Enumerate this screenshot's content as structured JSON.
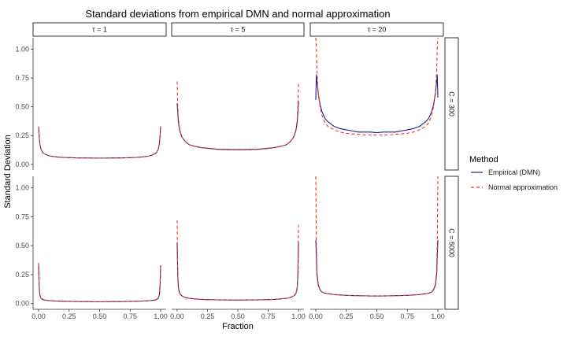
{
  "chart_data": {
    "type": "line",
    "title": "Standard deviations from empirical DMN and normal approximation",
    "xlabel": "Fraction",
    "ylabel": "Standard Deviation",
    "xlim": [
      0,
      1
    ],
    "ylim": [
      0,
      1.1
    ],
    "x_ticks": [
      "0.00",
      "0.25",
      "0.50",
      "0.75",
      "1.00"
    ],
    "y_ticks": [
      "0.00",
      "0.25",
      "0.50",
      "0.75",
      "1.00"
    ],
    "x_tick_values": [
      0,
      0.25,
      0.5,
      0.75,
      1
    ],
    "y_tick_values": [
      0,
      0.25,
      0.5,
      0.75,
      1
    ],
    "grid": false,
    "legend": {
      "title": "Method",
      "placement": "right",
      "entries": [
        {
          "label": "Empirical (DMN)",
          "color": "#1a237e",
          "dash": "solid"
        },
        {
          "label": "Normal approximation",
          "color": "#ff2a2a",
          "dash": "dashed"
        }
      ]
    },
    "facet_columns": [
      "τ = 1",
      "τ = 5",
      "τ = 20"
    ],
    "facet_rows": [
      "C = 300",
      "C = 5000"
    ],
    "x": [
      0.0,
      0.005,
      0.01,
      0.02,
      0.035,
      0.05,
      0.075,
      0.1,
      0.15,
      0.2,
      0.25,
      0.3,
      0.35,
      0.4,
      0.45,
      0.5,
      0.55,
      0.6,
      0.65,
      0.7,
      0.75,
      0.8,
      0.85,
      0.9,
      0.925,
      0.95,
      0.965,
      0.98,
      0.99,
      0.995,
      1.0
    ],
    "panels": [
      {
        "col": "τ = 1",
        "row": "C = 300",
        "series": [
          {
            "name": "Empirical (DMN)",
            "values": [
              0.33,
              0.25,
              0.18,
              0.13,
              0.1,
              0.09,
              0.078,
              0.071,
              0.064,
              0.06,
              0.058,
              0.056,
              0.055,
              0.055,
              0.054,
              0.054,
              0.054,
              0.055,
              0.055,
              0.056,
              0.058,
              0.06,
              0.064,
              0.071,
              0.078,
              0.09,
              0.1,
              0.13,
              0.18,
              0.25,
              0.33
            ]
          },
          {
            "name": "Normal approximation",
            "values": [
              0.33,
              0.25,
              0.18,
              0.13,
              0.1,
              0.09,
              0.078,
              0.071,
              0.064,
              0.06,
              0.058,
              0.056,
              0.055,
              0.055,
              0.054,
              0.054,
              0.054,
              0.055,
              0.055,
              0.056,
              0.058,
              0.06,
              0.064,
              0.071,
              0.078,
              0.09,
              0.1,
              0.13,
              0.18,
              0.25,
              0.33
            ]
          }
        ]
      },
      {
        "col": "τ = 5",
        "row": "C = 300",
        "series": [
          {
            "name": "Empirical (DMN)",
            "values": [
              0.53,
              0.45,
              0.37,
              0.3,
              0.25,
              0.22,
              0.19,
              0.17,
              0.155,
              0.145,
              0.14,
              0.135,
              0.13,
              0.13,
              0.128,
              0.128,
              0.128,
              0.13,
              0.13,
              0.135,
              0.14,
              0.145,
              0.155,
              0.17,
              0.19,
              0.22,
              0.25,
              0.3,
              0.37,
              0.45,
              0.55
            ]
          },
          {
            "name": "Normal approximation",
            "values": [
              0.72,
              0.52,
              0.4,
              0.31,
              0.25,
              0.22,
              0.19,
              0.17,
              0.155,
              0.145,
              0.137,
              0.132,
              0.128,
              0.126,
              0.125,
              0.125,
              0.125,
              0.126,
              0.128,
              0.132,
              0.137,
              0.145,
              0.155,
              0.17,
              0.19,
              0.22,
              0.25,
              0.31,
              0.4,
              0.52,
              0.7
            ]
          }
        ]
      },
      {
        "col": "τ = 20",
        "row": "C = 300",
        "series": [
          {
            "name": "Empirical (DMN)",
            "values": [
              0.56,
              0.78,
              0.72,
              0.62,
              0.52,
              0.46,
              0.4,
              0.37,
              0.33,
              0.31,
              0.3,
              0.29,
              0.28,
              0.28,
              0.28,
              0.275,
              0.28,
              0.28,
              0.28,
              0.29,
              0.3,
              0.31,
              0.33,
              0.37,
              0.4,
              0.46,
              0.52,
              0.62,
              0.72,
              0.78,
              0.58
            ]
          },
          {
            "name": "Normal approximation",
            "values": [
              1.1,
              1.0,
              0.8,
              0.62,
              0.5,
              0.43,
              0.36,
              0.33,
              0.3,
              0.28,
              0.27,
              0.265,
              0.26,
              0.255,
              0.255,
              0.255,
              0.255,
              0.255,
              0.26,
              0.265,
              0.27,
              0.28,
              0.3,
              0.33,
              0.36,
              0.43,
              0.5,
              0.62,
              0.8,
              1.0,
              1.1
            ]
          }
        ]
      },
      {
        "col": "τ = 1",
        "row": "C = 5000",
        "series": [
          {
            "name": "Empirical (DMN)",
            "values": [
              0.35,
              0.15,
              0.08,
              0.045,
              0.035,
              0.03,
              0.027,
              0.025,
              0.022,
              0.02,
              0.019,
              0.018,
              0.017,
              0.017,
              0.016,
              0.016,
              0.016,
              0.017,
              0.017,
              0.018,
              0.019,
              0.02,
              0.022,
              0.025,
              0.027,
              0.03,
              0.035,
              0.045,
              0.08,
              0.15,
              0.33
            ]
          },
          {
            "name": "Normal approximation",
            "values": [
              0.35,
              0.15,
              0.08,
              0.045,
              0.035,
              0.03,
              0.027,
              0.025,
              0.022,
              0.02,
              0.019,
              0.018,
              0.017,
              0.017,
              0.016,
              0.016,
              0.016,
              0.017,
              0.017,
              0.018,
              0.019,
              0.02,
              0.022,
              0.025,
              0.027,
              0.03,
              0.035,
              0.045,
              0.08,
              0.15,
              0.33
            ]
          }
        ]
      },
      {
        "col": "τ = 5",
        "row": "C = 5000",
        "series": [
          {
            "name": "Empirical (DMN)",
            "values": [
              0.53,
              0.25,
              0.14,
              0.09,
              0.07,
              0.06,
              0.05,
              0.045,
              0.04,
              0.036,
              0.034,
              0.033,
              0.032,
              0.032,
              0.031,
              0.031,
              0.031,
              0.032,
              0.032,
              0.033,
              0.034,
              0.036,
              0.04,
              0.045,
              0.05,
              0.06,
              0.07,
              0.09,
              0.14,
              0.25,
              0.53
            ]
          },
          {
            "name": "Normal approximation",
            "values": [
              0.72,
              0.28,
              0.15,
              0.09,
              0.07,
              0.06,
              0.05,
              0.045,
              0.04,
              0.036,
              0.034,
              0.033,
              0.032,
              0.032,
              0.031,
              0.031,
              0.031,
              0.032,
              0.032,
              0.033,
              0.034,
              0.036,
              0.04,
              0.045,
              0.05,
              0.06,
              0.07,
              0.09,
              0.15,
              0.28,
              0.68
            ]
          }
        ]
      },
      {
        "col": "τ = 20",
        "row": "C = 5000",
        "series": [
          {
            "name": "Empirical (DMN)",
            "values": [
              0.55,
              0.4,
              0.25,
              0.16,
              0.12,
              0.1,
              0.09,
              0.085,
              0.078,
              0.074,
              0.071,
              0.069,
              0.068,
              0.067,
              0.066,
              0.066,
              0.066,
              0.067,
              0.068,
              0.069,
              0.071,
              0.074,
              0.078,
              0.085,
              0.09,
              0.1,
              0.12,
              0.16,
              0.25,
              0.4,
              0.55
            ]
          },
          {
            "name": "Normal approximation",
            "values": [
              1.1,
              0.5,
              0.28,
              0.17,
              0.12,
              0.1,
              0.09,
              0.085,
              0.078,
              0.074,
              0.071,
              0.069,
              0.068,
              0.067,
              0.066,
              0.066,
              0.066,
              0.067,
              0.068,
              0.069,
              0.071,
              0.074,
              0.078,
              0.085,
              0.09,
              0.1,
              0.12,
              0.17,
              0.28,
              0.5,
              1.1
            ]
          }
        ]
      }
    ]
  }
}
